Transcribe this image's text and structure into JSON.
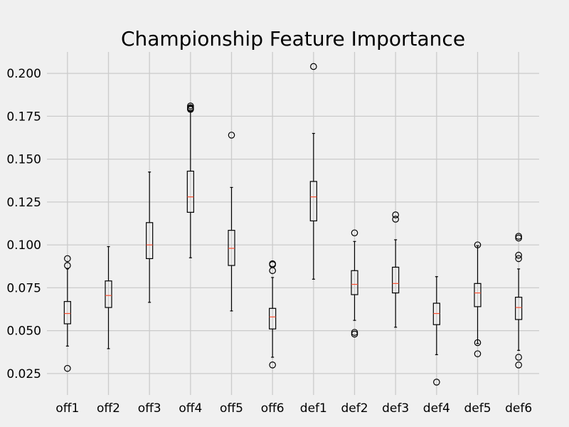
{
  "chart_data": {
    "type": "box",
    "title": "Championship Feature Importance",
    "xlabel": "",
    "ylabel": "",
    "ylim": [
      0.0125,
      0.2125
    ],
    "yticks": [
      0.025,
      0.05,
      0.075,
      0.1,
      0.125,
      0.15,
      0.175,
      0.2
    ],
    "ytick_labels": [
      "0.025",
      "0.050",
      "0.075",
      "0.100",
      "0.125",
      "0.150",
      "0.175",
      "0.200"
    ],
    "grid": true,
    "categories": [
      "off1",
      "off2",
      "off3",
      "off4",
      "off5",
      "off6",
      "def1",
      "def2",
      "def3",
      "def4",
      "def5",
      "def6"
    ],
    "boxes": [
      {
        "whislo": 0.041,
        "q1": 0.054,
        "med": 0.06,
        "q3": 0.067,
        "whishi": 0.086,
        "fliers": [
          0.028,
          0.088,
          0.092
        ]
      },
      {
        "whislo": 0.0395,
        "q1": 0.0635,
        "med": 0.0705,
        "q3": 0.079,
        "whishi": 0.099,
        "fliers": []
      },
      {
        "whislo": 0.0665,
        "q1": 0.092,
        "med": 0.1,
        "q3": 0.113,
        "whishi": 0.1425,
        "fliers": []
      },
      {
        "whislo": 0.0925,
        "q1": 0.119,
        "med": 0.128,
        "q3": 0.143,
        "whishi": 0.178,
        "fliers": [
          0.179,
          0.1795,
          0.18,
          0.181
        ]
      },
      {
        "whislo": 0.0615,
        "q1": 0.088,
        "med": 0.098,
        "q3": 0.1085,
        "whishi": 0.1335,
        "fliers": [
          0.164
        ]
      },
      {
        "whislo": 0.0345,
        "q1": 0.051,
        "med": 0.058,
        "q3": 0.063,
        "whishi": 0.081,
        "fliers": [
          0.03,
          0.085,
          0.0885,
          0.089
        ]
      },
      {
        "whislo": 0.08,
        "q1": 0.114,
        "med": 0.128,
        "q3": 0.137,
        "whishi": 0.165,
        "fliers": [
          0.204
        ]
      },
      {
        "whislo": 0.056,
        "q1": 0.071,
        "med": 0.077,
        "q3": 0.085,
        "whishi": 0.102,
        "fliers": [
          0.048,
          0.049,
          0.107
        ]
      },
      {
        "whislo": 0.052,
        "q1": 0.072,
        "med": 0.0775,
        "q3": 0.087,
        "whishi": 0.103,
        "fliers": [
          0.115,
          0.1175
        ]
      },
      {
        "whislo": 0.036,
        "q1": 0.0535,
        "med": 0.06,
        "q3": 0.066,
        "whishi": 0.0815,
        "fliers": [
          0.02
        ]
      },
      {
        "whislo": 0.0425,
        "q1": 0.064,
        "med": 0.072,
        "q3": 0.0775,
        "whishi": 0.0995,
        "fliers": [
          0.0365,
          0.043,
          0.1
        ]
      },
      {
        "whislo": 0.0385,
        "q1": 0.0565,
        "med": 0.0635,
        "q3": 0.0695,
        "whishi": 0.086,
        "fliers": [
          0.03,
          0.0345,
          0.092,
          0.094,
          0.104,
          0.105
        ]
      }
    ],
    "colors": {
      "background": "#f0f0f0",
      "grid": "#cbcbcb",
      "box": "#000000",
      "median": "#fc4f30"
    }
  }
}
